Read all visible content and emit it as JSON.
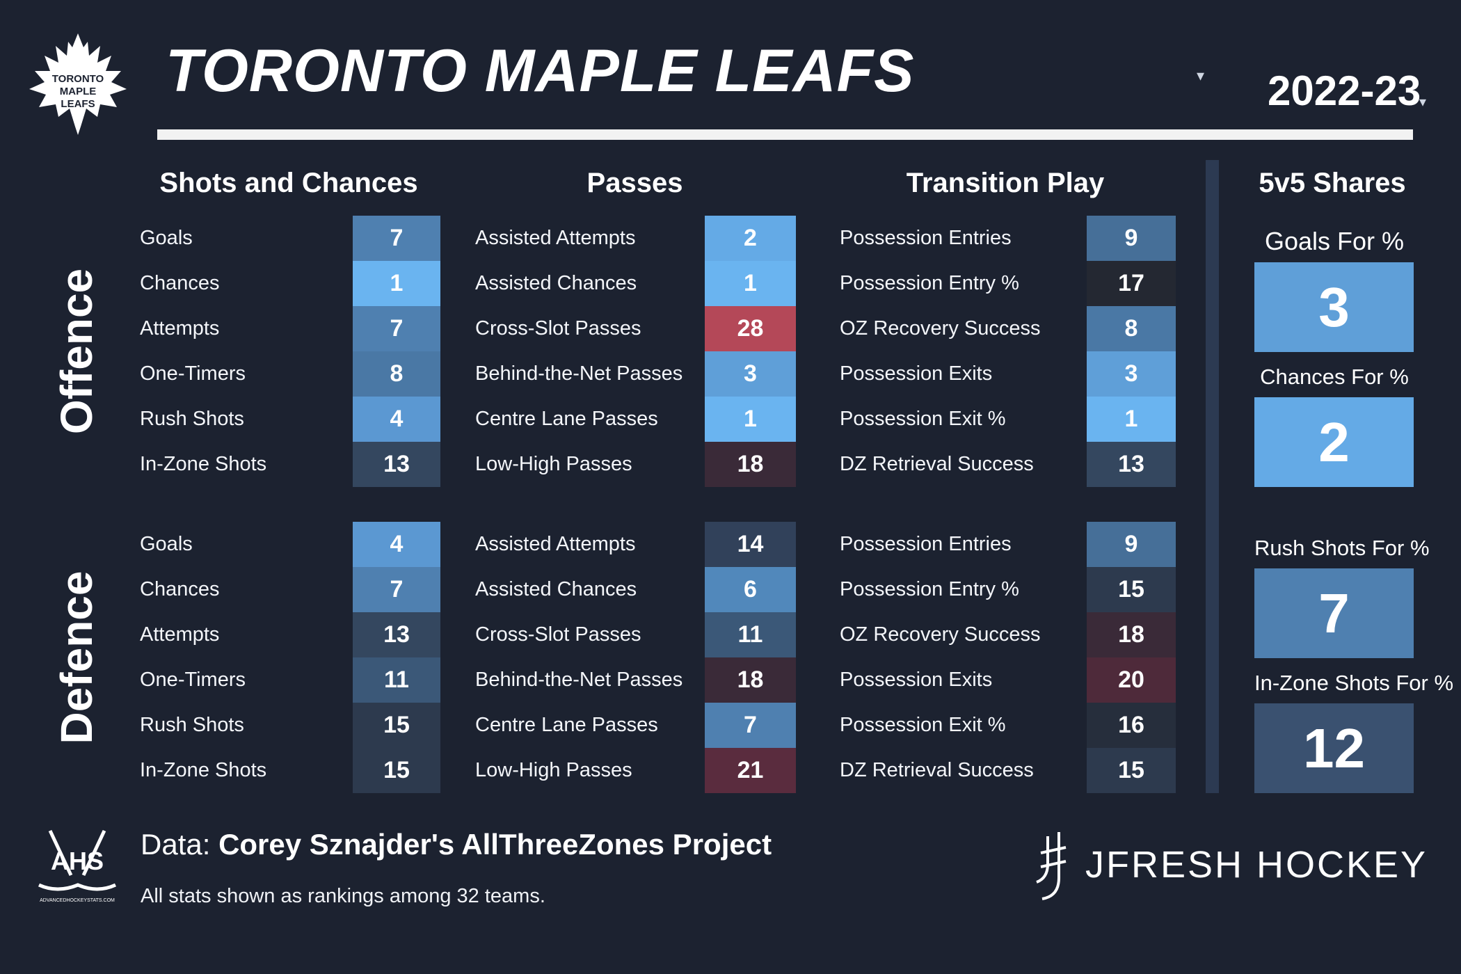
{
  "header": {
    "team_name": "TORONTO MAPLE LEAFS",
    "team_dropdown_icon": "caret-down-icon",
    "season": "2022-23",
    "season_dropdown_icon": "caret-down-icon",
    "logo_text": [
      "TORONTO",
      "MAPLE",
      "LEAFS"
    ]
  },
  "sections": {
    "shots": "Shots and Chances",
    "passes": "Passes",
    "transition": "Transition Play",
    "shares": "5v5 Shares"
  },
  "side_labels": {
    "offence": "Offence",
    "defence": "Defence"
  },
  "offence": {
    "shots": [
      {
        "label": "Goals",
        "value": "7",
        "color": "#4f80b0"
      },
      {
        "label": "Chances",
        "value": "1",
        "color": "#6ab4f0"
      },
      {
        "label": "Attempts",
        "value": "7",
        "color": "#4f80b0"
      },
      {
        "label": "One-Timers",
        "value": "8",
        "color": "#4a78a5"
      },
      {
        "label": "Rush Shots",
        "value": "4",
        "color": "#5b98d2"
      },
      {
        "label": "In-Zone Shots",
        "value": "13",
        "color": "#34475f"
      }
    ],
    "passes": [
      {
        "label": "Assisted Attempts",
        "value": "2",
        "color": "#64aae6"
      },
      {
        "label": "Assisted Chances",
        "value": "1",
        "color": "#6ab4f0"
      },
      {
        "label": "Cross-Slot Passes",
        "value": "28",
        "color": "#b44858"
      },
      {
        "label": "Behind-the-Net Passes",
        "value": "3",
        "color": "#5f9fd8"
      },
      {
        "label": "Centre Lane Passes",
        "value": "1",
        "color": "#6ab4f0"
      },
      {
        "label": "Low-High Passes",
        "value": "18",
        "color": "#3a2a38"
      }
    ],
    "transition": [
      {
        "label": "Possession Entries",
        "value": "9",
        "color": "#466f98"
      },
      {
        "label": "Possession Entry %",
        "value": "17",
        "color": "#242832"
      },
      {
        "label": "OZ Recovery Success",
        "value": "8",
        "color": "#4a78a5"
      },
      {
        "label": "Possession Exits",
        "value": "3",
        "color": "#5f9fd8"
      },
      {
        "label": "Possession Exit %",
        "value": "1",
        "color": "#6ab4f0"
      },
      {
        "label": "DZ Retrieval Success",
        "value": "13",
        "color": "#34475f"
      }
    ]
  },
  "defence": {
    "shots": [
      {
        "label": "Goals",
        "value": "4",
        "color": "#5b98d2"
      },
      {
        "label": "Chances",
        "value": "7",
        "color": "#4f80b0"
      },
      {
        "label": "Attempts",
        "value": "13",
        "color": "#34475f"
      },
      {
        "label": "One-Timers",
        "value": "11",
        "color": "#3b5878"
      },
      {
        "label": "Rush Shots",
        "value": "15",
        "color": "#2d3a4e"
      },
      {
        "label": "In-Zone Shots",
        "value": "15",
        "color": "#2d3a4e"
      }
    ],
    "passes": [
      {
        "label": "Assisted Attempts",
        "value": "14",
        "color": "#31415a"
      },
      {
        "label": "Assisted Chances",
        "value": "6",
        "color": "#5188bb"
      },
      {
        "label": "Cross-Slot Passes",
        "value": "11",
        "color": "#3b5878"
      },
      {
        "label": "Behind-the-Net Passes",
        "value": "18",
        "color": "#3a2a38"
      },
      {
        "label": "Centre Lane Passes",
        "value": "7",
        "color": "#4f80b0"
      },
      {
        "label": "Low-High Passes",
        "value": "21",
        "color": "#5a2c3e"
      }
    ],
    "transition": [
      {
        "label": "Possession Entries",
        "value": "9",
        "color": "#466f98"
      },
      {
        "label": "Possession Entry %",
        "value": "15",
        "color": "#2d3a4e"
      },
      {
        "label": "OZ Recovery Success",
        "value": "18",
        "color": "#3a2a38"
      },
      {
        "label": "Possession Exits",
        "value": "20",
        "color": "#4e2a3a"
      },
      {
        "label": "Possession Exit %",
        "value": "16",
        "color": "#262e3c"
      },
      {
        "label": "DZ Retrieval Success",
        "value": "15",
        "color": "#2d3a4e"
      }
    ]
  },
  "shares": [
    {
      "label": "Goals For %",
      "value": "3",
      "color": "#5f9fd8"
    },
    {
      "label": "Chances For %",
      "value": "2",
      "color": "#64aae6"
    },
    {
      "label": "Rush Shots For %",
      "value": "7",
      "color": "#4f80b0"
    },
    {
      "label": "In-Zone Shots For %",
      "value": "12",
      "color": "#3a5170"
    }
  ],
  "footer": {
    "data_prefix": "Data: ",
    "data_source": "Corey Sznajder's AllThreeZones Project",
    "note": "All stats shown as rankings among 32 teams.",
    "ahs_logo_text": "AHS",
    "ahs_url": "ADVANCEDHOCKEYSTATS.COM",
    "brand": "JFRESH HOCKEY"
  }
}
